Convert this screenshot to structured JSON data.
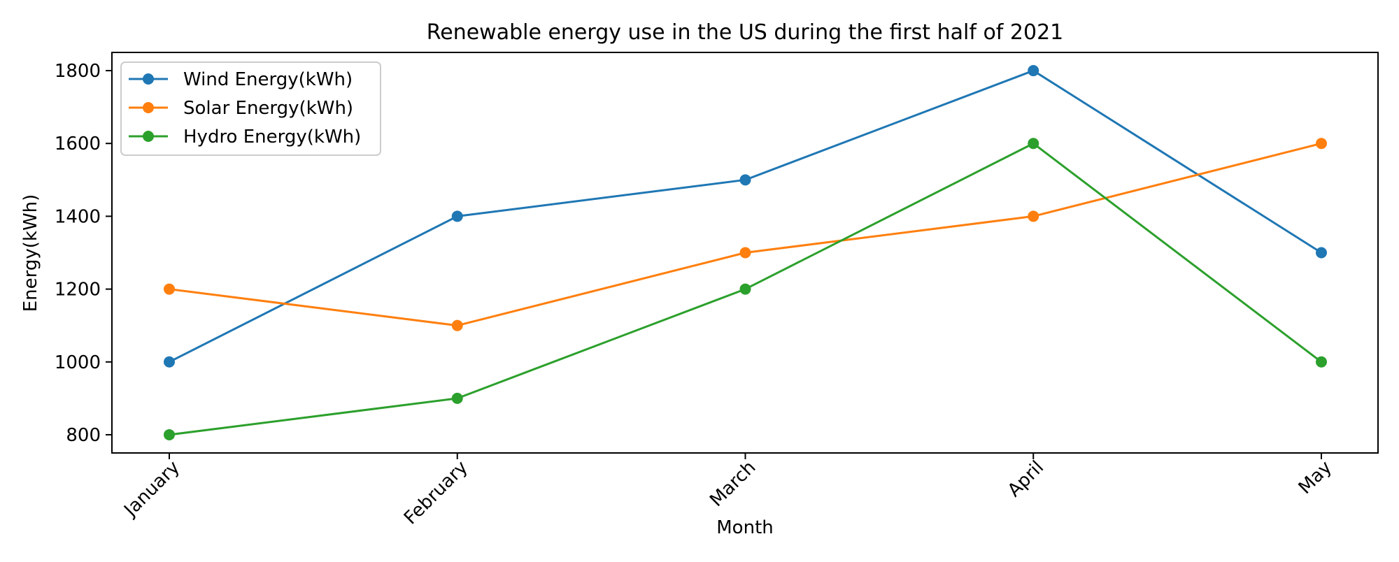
{
  "chart_data": {
    "type": "line",
    "title": "Renewable energy use in the US during the first half of 2021",
    "xlabel": "Month",
    "ylabel": "Energy(kWh)",
    "categories": [
      "January",
      "February",
      "March",
      "April",
      "May"
    ],
    "ylim": [
      750,
      1850
    ],
    "yticks": [
      800,
      1000,
      1200,
      1400,
      1600,
      1800
    ],
    "grid": false,
    "legend": "top-left",
    "series": [
      {
        "name": "Wind Energy(kWh)",
        "color": "#1f77b4",
        "values": [
          1000,
          1400,
          1500,
          1800,
          1300
        ]
      },
      {
        "name": "Solar Energy(kWh)",
        "color": "#ff7f0e",
        "values": [
          1200,
          1100,
          1300,
          1400,
          1600
        ]
      },
      {
        "name": "Hydro Energy(kWh)",
        "color": "#2ca02c",
        "values": [
          800,
          900,
          1200,
          1600,
          1000
        ]
      }
    ]
  }
}
